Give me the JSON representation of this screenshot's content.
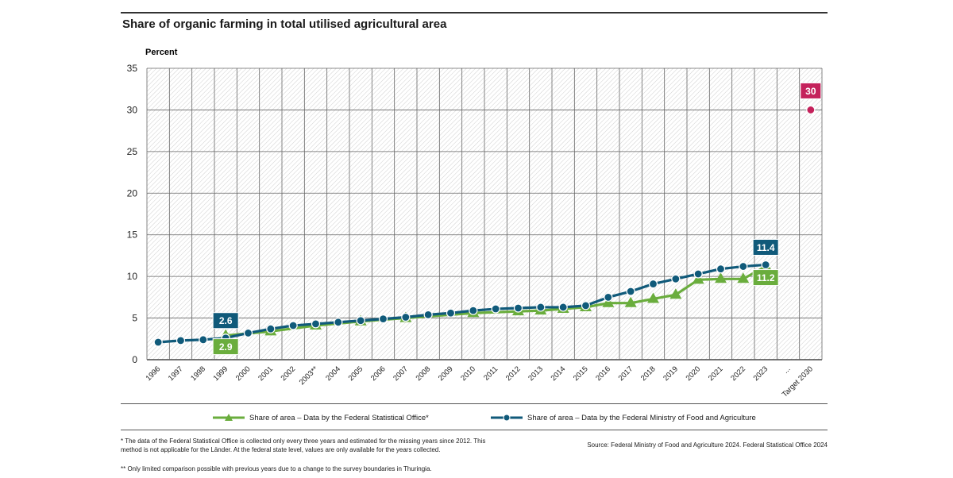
{
  "title": "Share of organic farming in total utilised agricultural area",
  "chart_data": {
    "type": "line",
    "title": "Share of organic farming in total utilised agricultural area",
    "ylabel": "Percent",
    "xlabel": "",
    "ylim": [
      0,
      35
    ],
    "yticks": [
      0,
      5,
      10,
      15,
      20,
      25,
      30,
      35
    ],
    "grid": true,
    "categories": [
      "1996",
      "1997",
      "1998",
      "1999",
      "2000",
      "2001",
      "2002",
      "2003**",
      "2004",
      "2005",
      "2006",
      "2007",
      "2008",
      "2009",
      "2010",
      "2011",
      "2012",
      "2013",
      "2014",
      "2015",
      "2016",
      "2017",
      "2018",
      "2019",
      "2020",
      "2021",
      "2022",
      "2023",
      "...",
      "Target 2030"
    ],
    "series": [
      {
        "name": "Share of area – Data by the Federal Statistical Office*",
        "color": "#6aad3d",
        "marker": "triangle",
        "values": [
          null,
          null,
          null,
          2.9,
          null,
          3.4,
          null,
          4.1,
          null,
          4.6,
          null,
          5.0,
          null,
          null,
          5.6,
          null,
          5.8,
          5.9,
          6.1,
          6.3,
          6.8,
          6.8,
          7.3,
          7.8,
          9.6,
          9.7,
          9.7,
          11.2,
          null,
          null
        ],
        "labels": [
          {
            "index": 3,
            "text": "2.9"
          },
          {
            "index": 27,
            "text": "11.2"
          }
        ]
      },
      {
        "name": "Share of area – Data by the Federal Ministry of Food and Agriculture",
        "color": "#105a7a",
        "marker": "circle",
        "values": [
          2.1,
          2.3,
          2.4,
          2.6,
          3.2,
          3.7,
          4.1,
          4.3,
          4.5,
          4.7,
          4.9,
          5.1,
          5.4,
          5.6,
          5.9,
          6.1,
          6.2,
          6.3,
          6.3,
          6.5,
          7.5,
          8.2,
          9.1,
          9.7,
          10.3,
          10.9,
          11.2,
          11.4,
          null,
          null
        ],
        "labels": [
          {
            "index": 3,
            "text": "2.6"
          },
          {
            "index": 27,
            "text": "11.4"
          }
        ]
      },
      {
        "name": "Target 2030",
        "color": "#c4215b",
        "marker": "circle",
        "values": [
          null,
          null,
          null,
          null,
          null,
          null,
          null,
          null,
          null,
          null,
          null,
          null,
          null,
          null,
          null,
          null,
          null,
          null,
          null,
          null,
          null,
          null,
          null,
          null,
          null,
          null,
          null,
          null,
          null,
          30
        ],
        "labels": [
          {
            "index": 29,
            "text": "30"
          }
        ]
      }
    ]
  },
  "legend": {
    "fso": "Share of area – Data by the Federal Statistical Office*",
    "bmel": "Share of area – Data by the Federal Ministry of Food and Agriculture"
  },
  "footnotes": {
    "note1": "* The data of the Federal Statistical Office is collected only every three years and estimated for the missing years since 2012. This method is not applicable for the Länder. At the federal state level, values are only available for the years collected.",
    "note2": "** Only limited comparison possible with previous years due to a change to the survey boundaries in Thuringia."
  },
  "source": "Source: Federal Ministry of Food and Agriculture 2024. Federal Statistical Office 2024",
  "colors": {
    "green": "#6aad3d",
    "blue": "#105a7a",
    "magenta": "#c4215b"
  }
}
